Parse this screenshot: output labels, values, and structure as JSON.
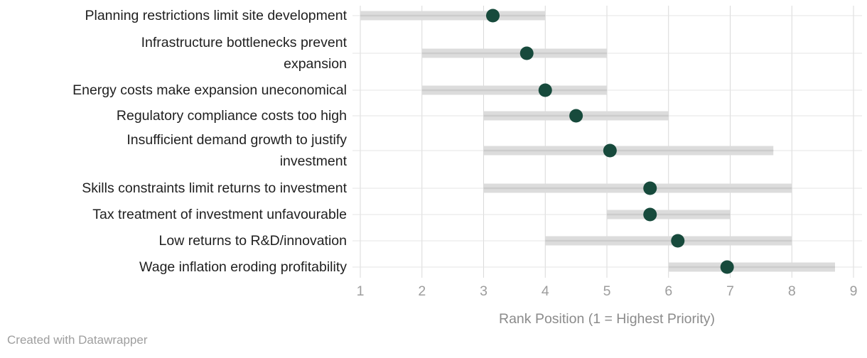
{
  "chart_data": {
    "type": "dot-range",
    "title": "",
    "xlabel": "Rank Position (1 = Highest Priority)",
    "x_ticks": [
      "1",
      "2",
      "3",
      "4",
      "5",
      "6",
      "7",
      "8",
      "9"
    ],
    "xlim": [
      1,
      9
    ],
    "grid": "vertical-and-row-lines",
    "legend": "none",
    "rows": [
      {
        "label_lines": [
          "Planning restrictions limit site development"
        ],
        "range": [
          1,
          4
        ],
        "dot": 3.15
      },
      {
        "label_lines": [
          "Infrastructure bottlenecks prevent",
          "expansion"
        ],
        "range": [
          2,
          5
        ],
        "dot": 3.7
      },
      {
        "label_lines": [
          "Energy costs make expansion uneconomical"
        ],
        "range": [
          2,
          5
        ],
        "dot": 4.0
      },
      {
        "label_lines": [
          "Regulatory compliance costs too high"
        ],
        "range": [
          3,
          6
        ],
        "dot": 4.5
      },
      {
        "label_lines": [
          "Insufficient demand growth to justify",
          "investment"
        ],
        "range": [
          3,
          7.7
        ],
        "dot": 5.05
      },
      {
        "label_lines": [
          "Skills constraints limit returns to investment"
        ],
        "range": [
          3,
          8
        ],
        "dot": 5.7
      },
      {
        "label_lines": [
          "Tax treatment of investment unfavourable"
        ],
        "range": [
          5,
          7
        ],
        "dot": 5.7
      },
      {
        "label_lines": [
          "Low returns to R&D/innovation"
        ],
        "range": [
          4,
          8
        ],
        "dot": 6.15
      },
      {
        "label_lines": [
          "Wage inflation eroding profitability"
        ],
        "range": [
          6,
          8.7
        ],
        "dot": 6.95
      }
    ],
    "colors": {
      "dot": "#174a3c",
      "range_bar": "#dcdcdc",
      "range_bar_stripe": "#cccccc",
      "vgrid": "#d9d9d9",
      "row_line": "#e4e4e4",
      "tick_text": "#9d9d9d",
      "axis_title": "#8b8b8b",
      "label_text": "#1f1f1f"
    }
  },
  "footer": {
    "credit": "Created with Datawrapper"
  }
}
